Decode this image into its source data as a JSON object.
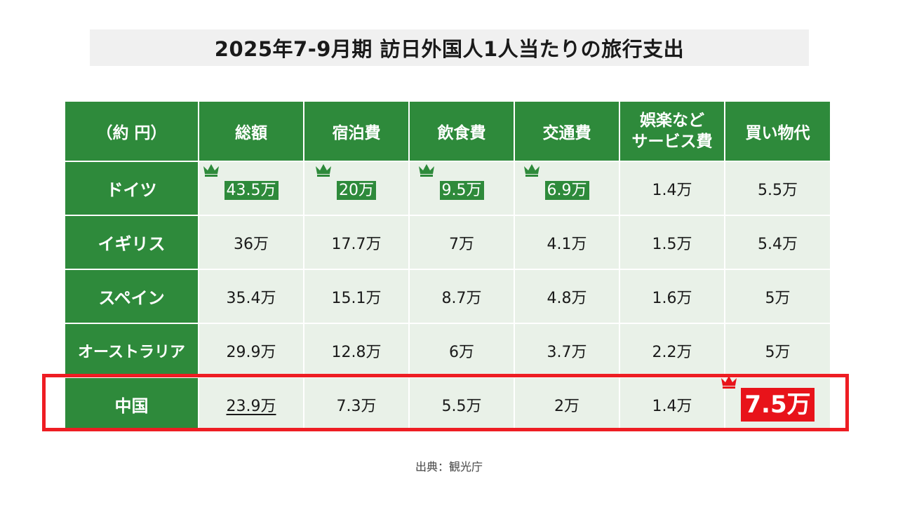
{
  "title": "2025年7-9月期 訪日外国人1人当たりの旅行支出",
  "source": "出典：観光庁",
  "colors": {
    "header_green": "#2e8a3b",
    "cell_bg": "#e9f1e8",
    "highlight_red": "#e8131a",
    "frame_red": "#ee1d23"
  },
  "chart_data": {
    "type": "table",
    "corner_label": "（約 円）",
    "columns": [
      "総額",
      "宿泊費",
      "飲食費",
      "交通費",
      "娯楽など サービス費",
      "買い物代"
    ],
    "rows": [
      {
        "label": "ドイツ",
        "values": [
          "43.5万",
          "20万",
          "9.5万",
          "6.9万",
          "1.4万",
          "5.5万"
        ]
      },
      {
        "label": "イギリス",
        "values": [
          "36万",
          "17.7万",
          "7万",
          "4.1万",
          "1.5万",
          "5.4万"
        ]
      },
      {
        "label": "スペイン",
        "values": [
          "35.4万",
          "15.1万",
          "8.7万",
          "4.8万",
          "1.6万",
          "5万"
        ]
      },
      {
        "label": "オーストラリア",
        "values": [
          "29.9万",
          "12.8万",
          "6万",
          "3.7万",
          "2.2万",
          "5万"
        ]
      },
      {
        "label": "中国",
        "values": [
          "23.9万",
          "7.3万",
          "5.5万",
          "2万",
          "1.4万",
          "7.5万"
        ]
      }
    ],
    "top_values": [
      {
        "row": "ドイツ",
        "column": "総額"
      },
      {
        "row": "ドイツ",
        "column": "宿泊費"
      },
      {
        "row": "ドイツ",
        "column": "飲食費"
      },
      {
        "row": "ドイツ",
        "column": "交通費"
      },
      {
        "row": "中国",
        "column": "買い物代"
      }
    ],
    "highlighted_row": "中国",
    "underlined": [
      {
        "row": "中国",
        "column": "総額"
      }
    ]
  }
}
